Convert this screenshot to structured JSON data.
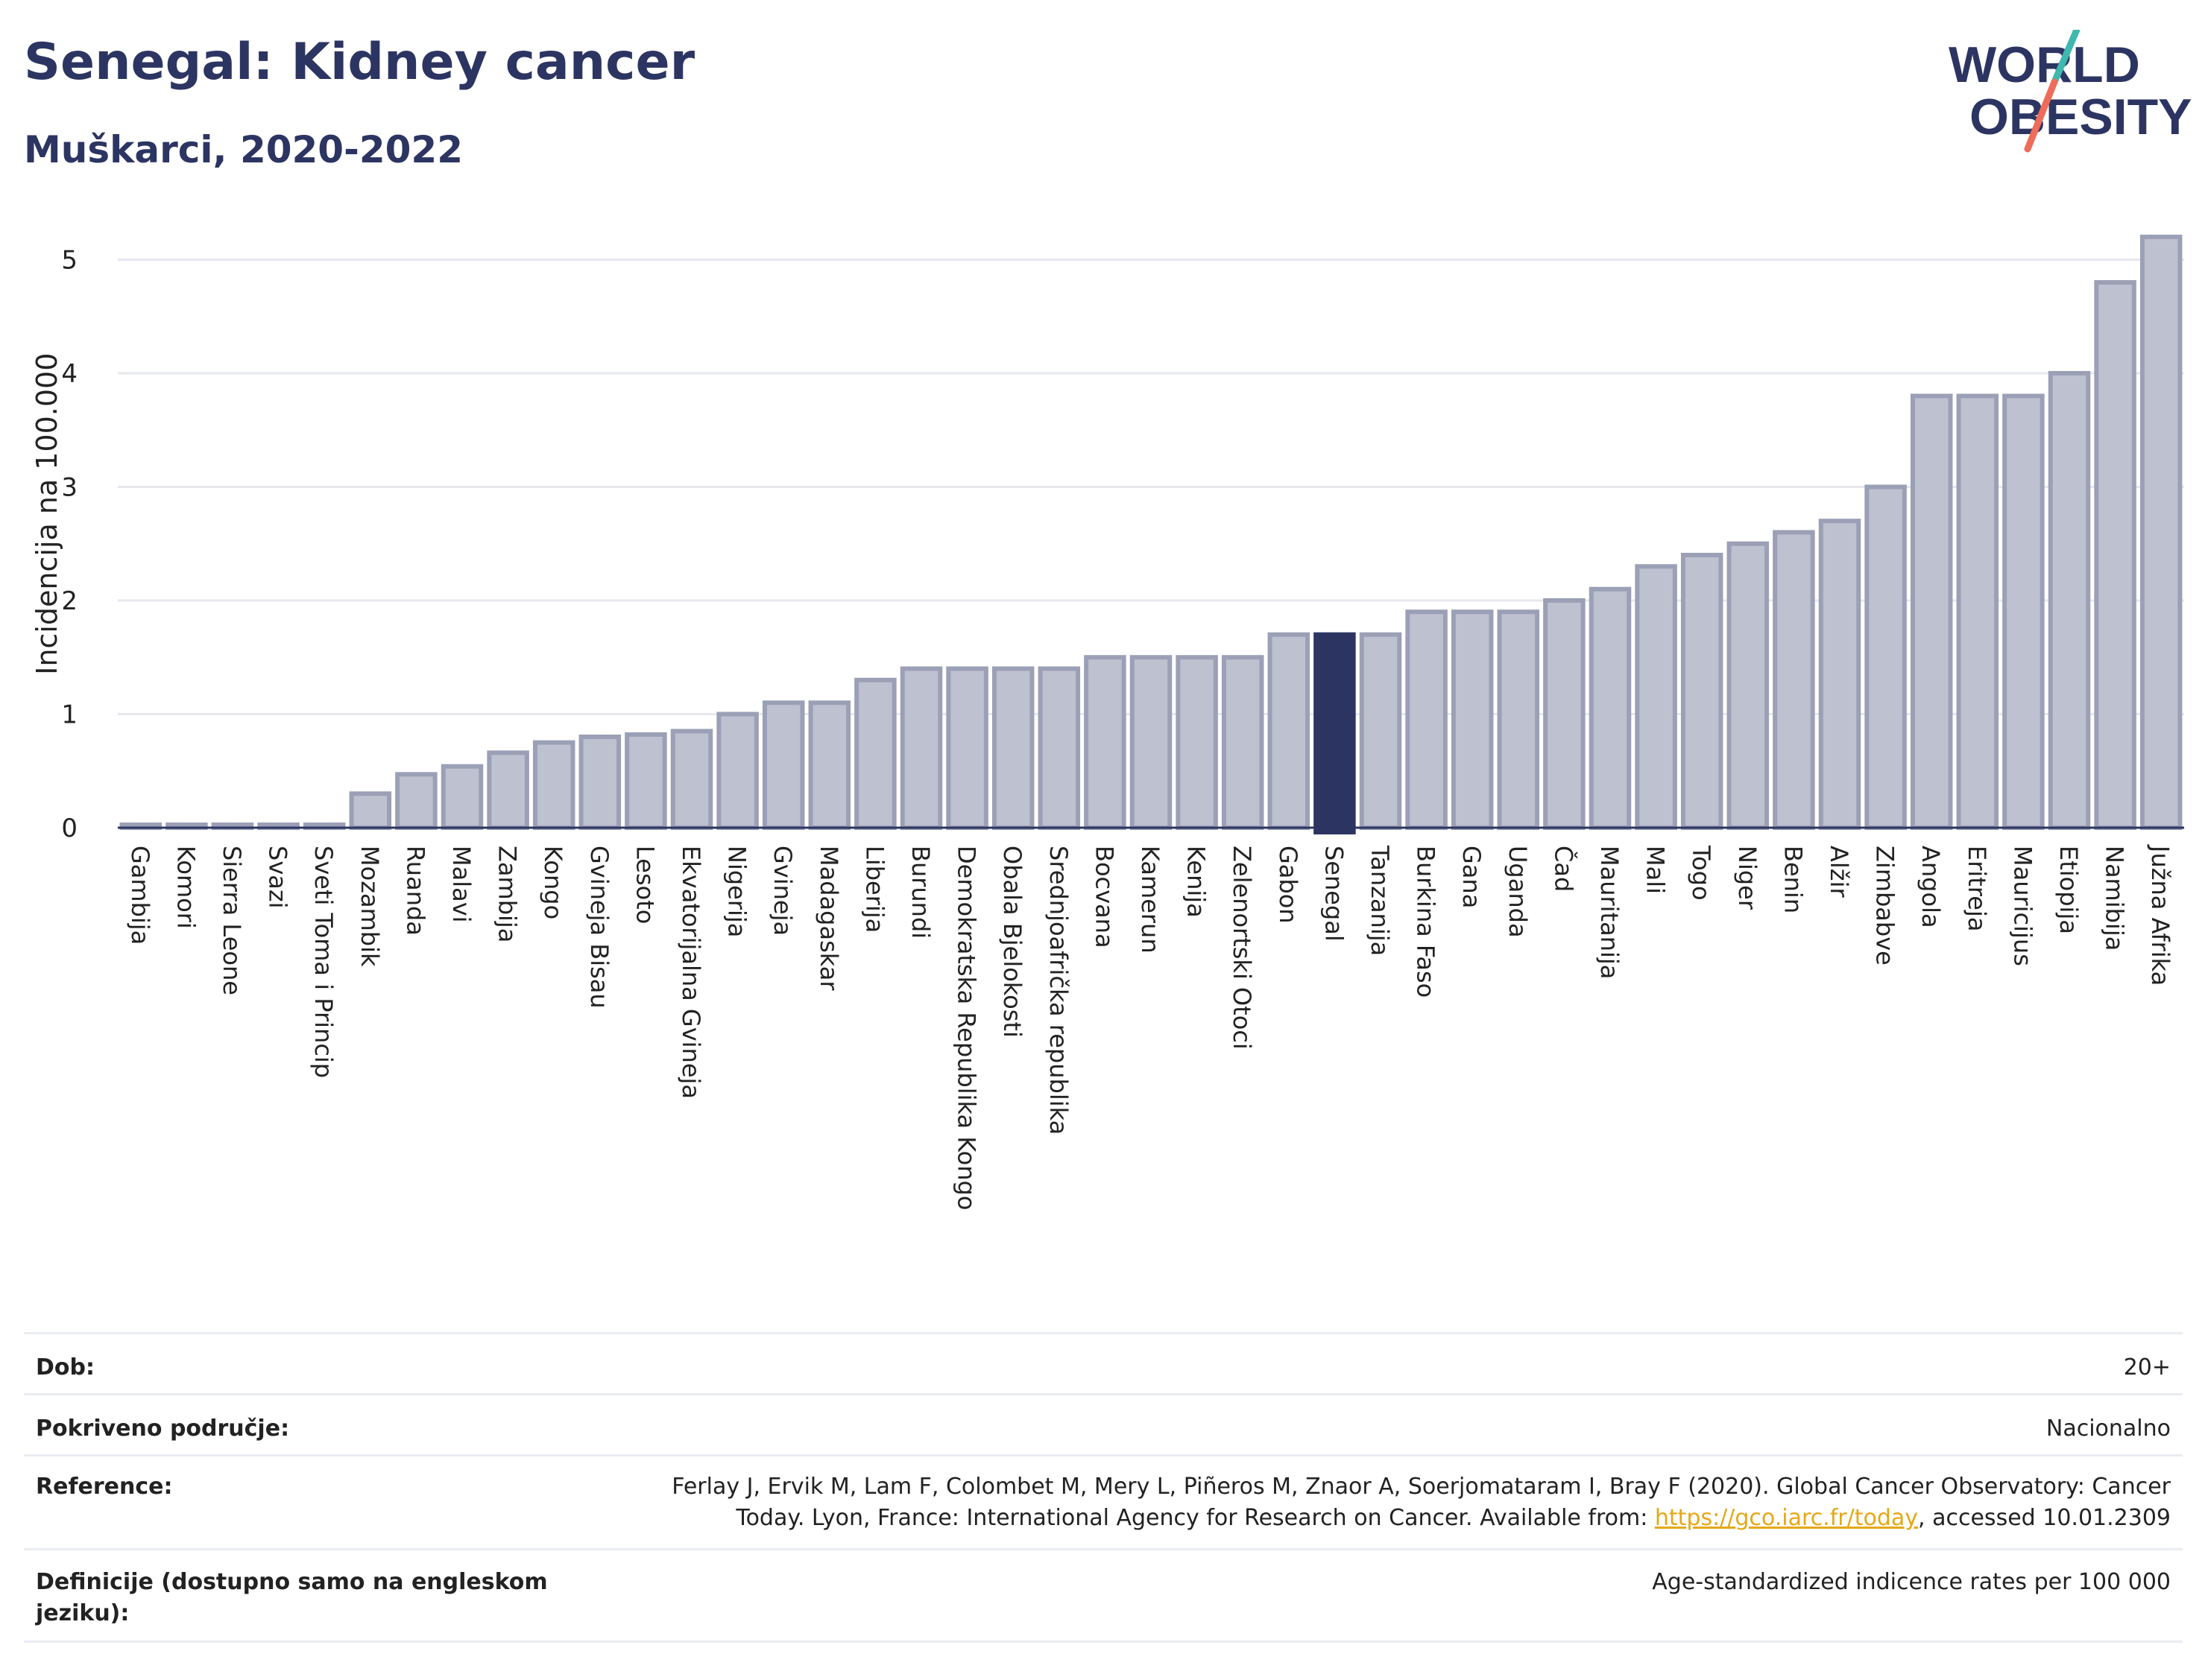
{
  "header": {
    "title": "Senegal: Kidney cancer",
    "subtitle": "Muškarci, 2020-2022"
  },
  "logo": {
    "line1": "WORLD",
    "line2": "OBESITY",
    "colors": {
      "text": "#2c3562",
      "slash_teal": "#3fb8af",
      "slash_coral": "#ef6c5a"
    }
  },
  "chart_data": {
    "type": "bar",
    "ylabel": "Incidencija na 100.000",
    "xlabel": "",
    "ylim": [
      0,
      5.3
    ],
    "yticks": [
      0,
      1,
      2,
      3,
      4,
      5
    ],
    "grid": true,
    "highlight": "Senegal",
    "colors": {
      "bar": "#bdc1d0",
      "bar_edge": "#9ba0b6",
      "highlight": "#2c3562"
    },
    "categories": [
      "Gambija",
      "Komori",
      "Sierra Leone",
      "Svazi",
      "Sveti Toma i Princip",
      "Mozambik",
      "Ruanda",
      "Malavi",
      "Zambija",
      "Kongo",
      "Gvineja Bisau",
      "Lesoto",
      "Ekvatorijalna Gvineja",
      "Nigerija",
      "Gvineja",
      "Madagaskar",
      "Liberija",
      "Burundi",
      "Demokratska Republika Kongo",
      "Obala Bjelokosti",
      "Srednjoafrička republika",
      "Bocvana",
      "Kamerun",
      "Kenija",
      "Zelenortski Otoci",
      "Gabon",
      "Senegal",
      "Tanzanija",
      "Burkina Faso",
      "Gana",
      "Uganda",
      "Čad",
      "Mauritanija",
      "Mali",
      "Togo",
      "Niger",
      "Benin",
      "Alžir",
      "Zimbabve",
      "Angola",
      "Eritreja",
      "Mauricijus",
      "Etiopija",
      "Namibija",
      "Južna Afrika"
    ],
    "values": [
      0,
      0,
      0,
      0,
      0,
      0.3,
      0.47,
      0.54,
      0.66,
      0.75,
      0.8,
      0.82,
      0.85,
      1.0,
      1.1,
      1.1,
      1.3,
      1.4,
      1.4,
      1.4,
      1.4,
      1.5,
      1.5,
      1.5,
      1.5,
      1.7,
      1.7,
      1.7,
      1.9,
      1.9,
      1.9,
      2.0,
      2.1,
      2.3,
      2.4,
      2.5,
      2.6,
      2.7,
      3.0,
      3.8,
      3.8,
      3.8,
      4.0,
      4.8,
      5.2
    ]
  },
  "info_table": [
    {
      "label": "Dob:",
      "value": "20+"
    },
    {
      "label": "Pokriveno područje:",
      "value": "Nacionalno"
    },
    {
      "label": "Reference:",
      "value_line1": "Ferlay J, Ervik M, Lam F, Colombet M, Mery L, Piñeros M, Znaor A, Soerjomataram I, Bray F (2020). Global Cancer Observatory: Cancer",
      "value_line2_pre": "Today. Lyon, France: International Agency for Research on Cancer. Available from: ",
      "link": "https://gco.iarc.fr/today",
      "value_line2_post": ", accessed 10.01.2309"
    },
    {
      "label": "Definicije (dostupno samo na engleskom jeziku):",
      "value": "Age-standardized indicence rates per 100 000"
    }
  ]
}
